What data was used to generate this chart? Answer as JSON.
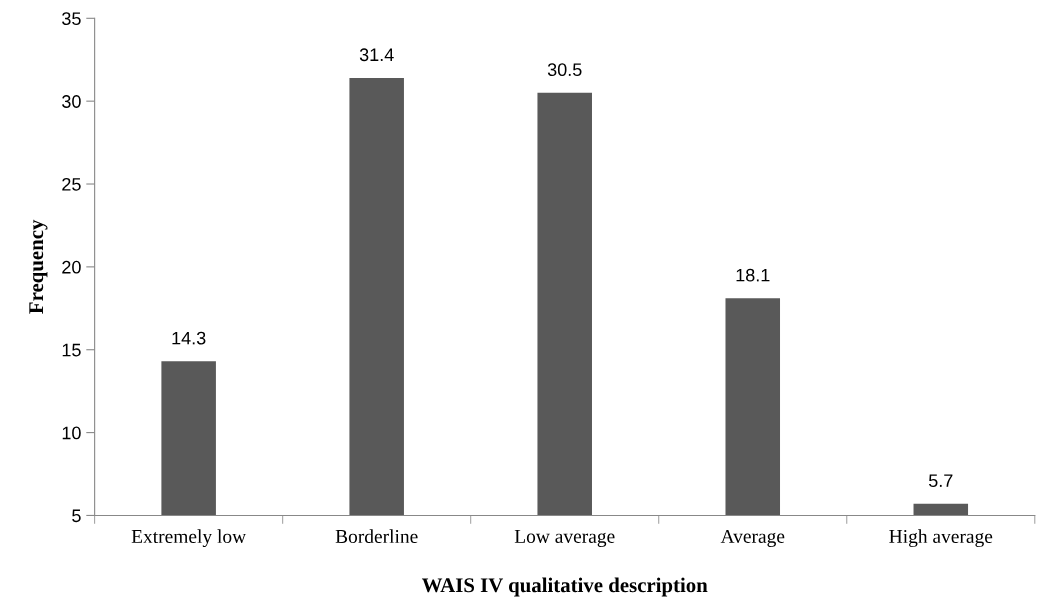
{
  "chart_data": {
    "type": "bar",
    "xlabel": "WAIS IV qualitative description",
    "ylabel": "Frequency",
    "categories": [
      "Extremely low",
      "Borderline",
      "Low average",
      "Average",
      "High average"
    ],
    "values": [
      14.3,
      31.4,
      30.5,
      18.1,
      5.7
    ],
    "color": "#595959",
    "ylim": [
      5,
      35
    ],
    "yticks": [
      5,
      10,
      15,
      20,
      25,
      30,
      35
    ],
    "grid": false,
    "data_labels": true
  }
}
